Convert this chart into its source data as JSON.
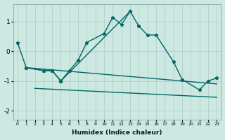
{
  "xlabel": "Humidex (Indice chaleur)",
  "bg_color": "#cce8e0",
  "grid_color": "#aacccc",
  "line_color": "#006666",
  "xlim": [
    -0.5,
    23.5
  ],
  "ylim": [
    -2.3,
    1.6
  ],
  "yticks": [
    -2,
    -1,
    0,
    1
  ],
  "xticks": [
    0,
    1,
    2,
    3,
    4,
    5,
    6,
    7,
    8,
    9,
    10,
    11,
    12,
    13,
    14,
    15,
    16,
    17,
    18,
    19,
    20,
    21,
    22,
    23
  ],
  "s1x": [
    0,
    1,
    3,
    4,
    5,
    6,
    7,
    8,
    10,
    11,
    12,
    13,
    14,
    15,
    16,
    18,
    19,
    21,
    22,
    23
  ],
  "s1y": [
    0.3,
    -0.55,
    -0.65,
    -0.65,
    -1.0,
    -0.65,
    -0.3,
    0.3,
    0.6,
    1.15,
    0.9,
    1.35,
    0.85,
    0.55,
    0.55,
    -0.35,
    -0.95,
    -1.3,
    -1.0,
    -0.9
  ],
  "s2x": [
    1,
    3,
    4,
    5,
    13
  ],
  "s2y": [
    -0.55,
    -0.65,
    -0.65,
    -1.0,
    1.35
  ],
  "s3x": [
    1,
    23
  ],
  "s3y": [
    -0.55,
    -1.1
  ],
  "s4x": [
    2,
    23
  ],
  "s4y": [
    -1.25,
    -1.55
  ]
}
